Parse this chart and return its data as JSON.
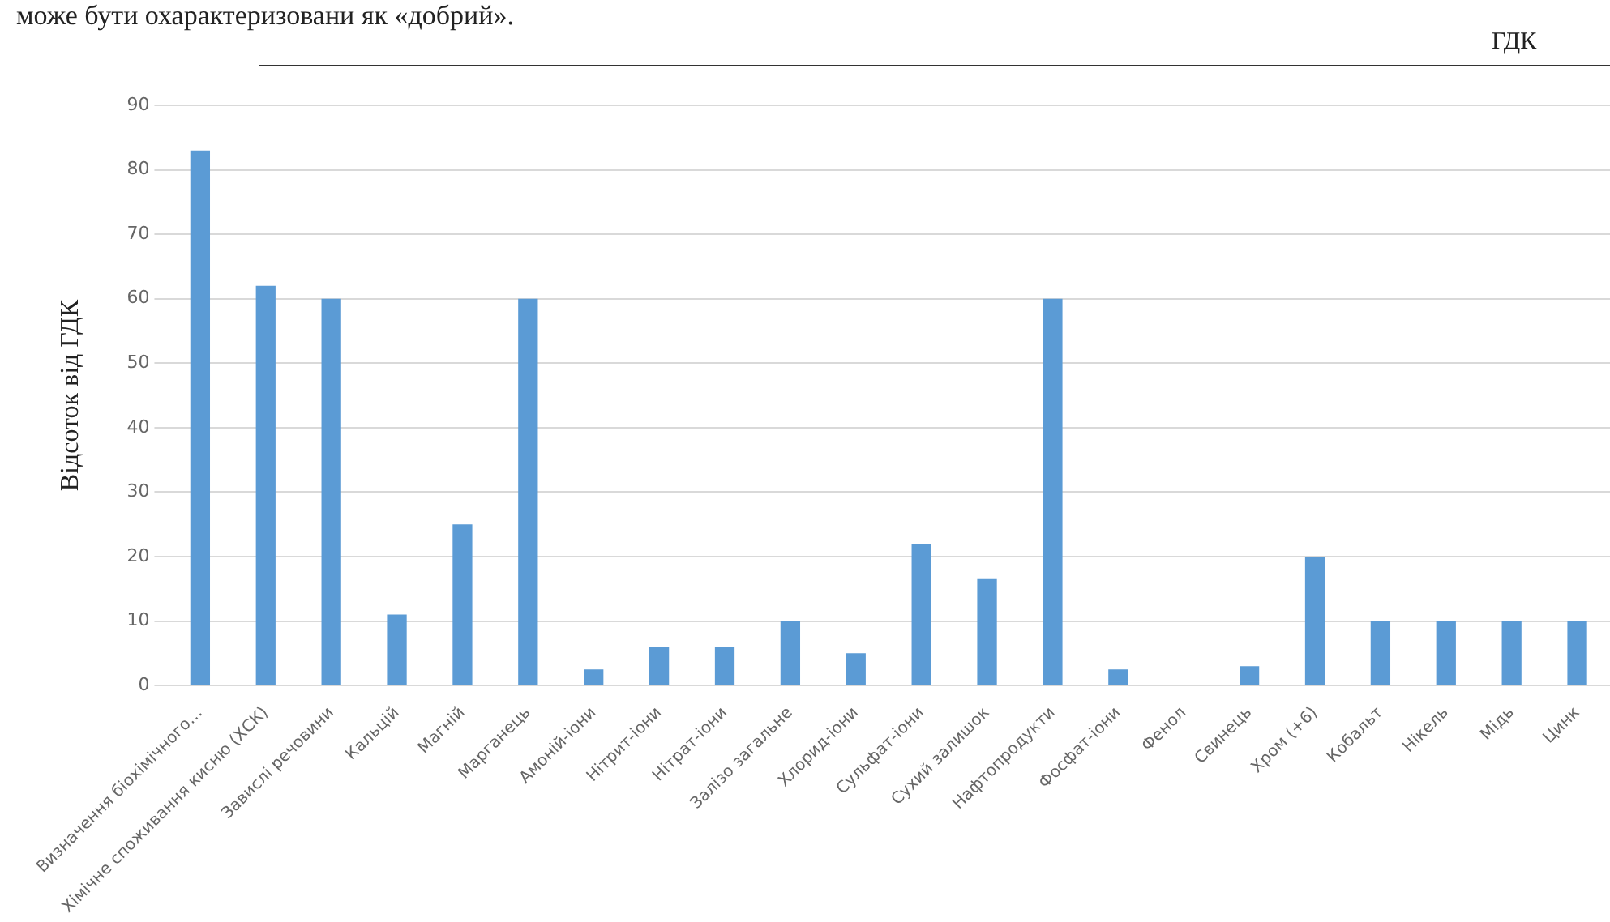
{
  "chart_data": {
    "type": "bar",
    "title": "ГДК",
    "annotations": [
      "може бути охарактеризовани як «добрий»."
    ],
    "ylabel": "Відсоток від ГДК",
    "categories": [
      "Визначення біохімічного…",
      "Хімічне споживання кисню (ХСК)",
      "Завислі речовини",
      "Кальцій",
      "Магній",
      "Марганець",
      "Амоній-іони",
      "Нітрит-іони",
      "Нітрат-іони",
      "Залізо загальне",
      "Хлорид-іони",
      "Сульфат-іони",
      "Сухий залишок",
      "Нафтопродукти",
      "Фосфат-іони",
      "Фенол",
      "Свинець",
      "Хром (+6)",
      "Кобальт",
      "Нікель",
      "Мідь",
      "Цинк"
    ],
    "values": [
      83,
      62,
      60,
      11,
      25,
      60,
      2.5,
      6,
      6,
      10,
      5,
      22,
      16.5,
      60,
      2.5,
      0,
      3,
      20,
      10,
      10,
      10,
      10
    ],
    "color": "#5b9bd5",
    "ylim": [
      0,
      90
    ],
    "yticks": [
      0,
      10,
      20,
      30,
      40,
      50,
      60,
      70,
      80,
      90
    ],
    "grid": "y",
    "legend": false
  }
}
